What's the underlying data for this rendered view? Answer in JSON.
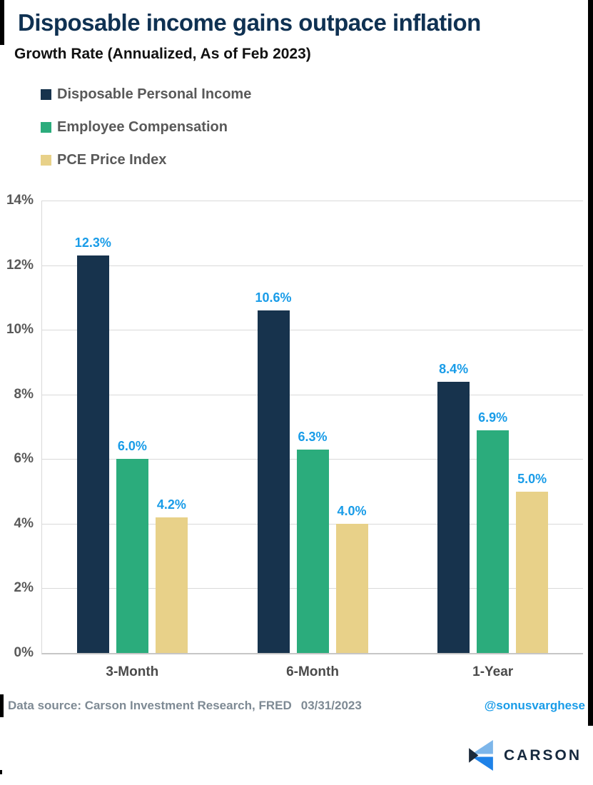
{
  "header": {
    "title": "Disposable income gains outpace inflation"
  },
  "subtitle": "Growth Rate (Annualized, As of Feb 2023)",
  "legend": [
    {
      "label": "Disposable Personal Income",
      "color": "#17334d"
    },
    {
      "label": "Employee Compensation",
      "color": "#2bac7c"
    },
    {
      "label": "PCE Price Index",
      "color": "#e8d189"
    }
  ],
  "chart_data": {
    "type": "bar",
    "title": "Growth Rate (Annualized, As of Feb 2023)",
    "categories": [
      "3-Month",
      "6-Month",
      "1-Year"
    ],
    "series": [
      {
        "name": "Disposable Personal Income",
        "color": "#17334d",
        "values": [
          12.3,
          10.6,
          8.4
        ]
      },
      {
        "name": "Employee Compensation",
        "color": "#2bac7c",
        "values": [
          6.0,
          6.3,
          6.9
        ]
      },
      {
        "name": "PCE Price Index",
        "color": "#e8d189",
        "values": [
          4.2,
          4.0,
          5.0
        ]
      }
    ],
    "data_labels": {
      "Disposable Personal Income": [
        "12.3%",
        "10.6%",
        "8.4%"
      ],
      "Employee Compensation": [
        "6.0%",
        "6.3%",
        "6.9%"
      ],
      "PCE Price Index": [
        "4.2%",
        "4.0%",
        "5.0%"
      ]
    },
    "xlabel": "",
    "ylabel": "",
    "ylim": [
      0,
      14
    ],
    "ytick_step": 2,
    "ytick_suffix": "%",
    "grid": true,
    "legend_position": "top-left",
    "label_color": "#199ce8"
  },
  "footer": {
    "source": "Data source: Carson Investment Research, FRED",
    "date": "03/31/2023",
    "handle": "@sonusvarghese",
    "handle_color": "#199ce8",
    "logo_text": "CARSON"
  },
  "colors": {
    "title": "#0f3152",
    "gridline": "#d9d9d9",
    "axis_text": "#595959",
    "category_text": "#4a4a4a",
    "logo_navy": "#1b2a3b",
    "logo_light_blue": "#7db6ea",
    "logo_bright_blue": "#1f82e8"
  }
}
